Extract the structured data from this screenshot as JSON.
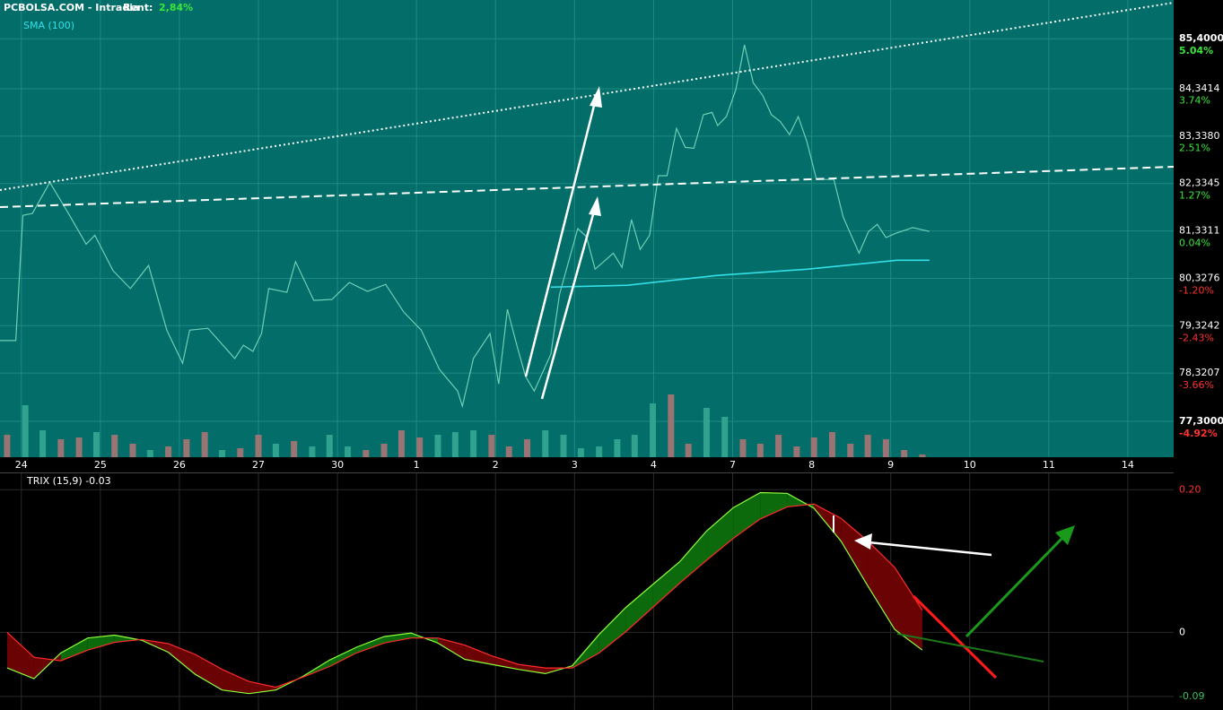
{
  "chart_data": [
    {
      "type": "line",
      "title": "PCBOLSA.COM - Intradia",
      "rent_label": "Rent:",
      "rent_value": "2,84%",
      "grid": true,
      "xlim": [
        -0.27,
        14.58
      ],
      "xticks": [
        {
          "value": 0,
          "label": "24"
        },
        {
          "value": 1,
          "label": "25"
        },
        {
          "value": 2,
          "label": "26"
        },
        {
          "value": 3,
          "label": "27"
        },
        {
          "value": 4,
          "label": "30"
        },
        {
          "value": 5,
          "label": "1"
        },
        {
          "value": 6,
          "label": "2"
        },
        {
          "value": 7,
          "label": "3"
        },
        {
          "value": 8,
          "label": "4"
        },
        {
          "value": 9,
          "label": "7"
        },
        {
          "value": 10,
          "label": "8"
        },
        {
          "value": 11,
          "label": "9"
        },
        {
          "value": 12,
          "label": "10"
        },
        {
          "value": 13,
          "label": "11"
        },
        {
          "value": 14,
          "label": "14"
        }
      ],
      "ylim": [
        76.54,
        86.22
      ],
      "yticks": [
        {
          "value": 85.4,
          "label": "85,4000"
        },
        {
          "value": 84.3414,
          "label": "84,3414"
        },
        {
          "value": 83.338,
          "label": "83,3380"
        },
        {
          "value": 82.3345,
          "label": "82,3345"
        },
        {
          "value": 81.3311,
          "label": "81,3311"
        },
        {
          "value": 80.3276,
          "label": "80,3276"
        },
        {
          "value": 79.3242,
          "label": "79,3242"
        },
        {
          "value": 78.3207,
          "label": "78,3207"
        },
        {
          "value": 77.3,
          "label": "77,3000"
        }
      ],
      "y2lim": [
        -5.85,
        6.04
      ],
      "y2ticks": [
        {
          "value": 5.04,
          "label": "5.04%"
        },
        {
          "value": 3.74,
          "label": "3.74%"
        },
        {
          "value": 2.51,
          "label": "2.51%"
        },
        {
          "value": 1.27,
          "label": "1.27%"
        },
        {
          "value": 0.04,
          "label": "0.04%"
        },
        {
          "value": -1.2,
          "label": "-1.20%"
        },
        {
          "value": -2.43,
          "label": "-2.43%"
        },
        {
          "value": -3.66,
          "label": "-3.66%"
        },
        {
          "value": -4.92,
          "label": "-4.92%"
        }
      ],
      "series": [
        {
          "color": "#6fcfb5",
          "x": [
            -0.27,
            -0.07,
            0.02,
            0.14,
            0.36,
            0.59,
            0.82,
            0.93,
            1.16,
            1.38,
            1.61,
            1.84,
            2.04,
            2.13,
            2.36,
            2.7,
            2.81,
            2.93,
            3.04,
            3.13,
            3.36,
            3.47,
            3.7,
            3.93,
            4.15,
            4.38,
            4.61,
            4.84,
            5.06,
            5.29,
            5.52,
            5.58,
            5.72,
            5.93,
            6.04,
            6.15,
            6.27,
            6.38,
            6.49,
            6.7,
            6.81,
            7.04,
            7.15,
            7.26,
            7.49,
            7.6,
            7.72,
            7.83,
            7.95,
            8.06,
            8.17,
            8.29,
            8.4,
            8.51,
            8.63,
            8.74,
            8.81,
            8.92,
            9.04,
            9.15,
            9.26,
            9.38,
            9.49,
            9.6,
            9.72,
            9.83,
            9.94,
            10.06,
            10.28,
            10.4,
            10.6,
            10.72,
            10.83,
            10.94,
            11.06,
            11.28,
            11.49
          ],
          "values": [
            79.01,
            79.01,
            81.66,
            81.7,
            82.36,
            81.72,
            81.05,
            81.24,
            80.49,
            80.11,
            80.6,
            79.23,
            78.53,
            79.23,
            79.27,
            78.63,
            78.91,
            78.78,
            79.16,
            80.11,
            80.03,
            80.68,
            79.86,
            79.88,
            80.24,
            80.05,
            80.2,
            79.61,
            79.23,
            78.4,
            77.94,
            77.62,
            78.63,
            79.16,
            78.09,
            79.67,
            78.91,
            78.25,
            77.94,
            78.72,
            79.99,
            81.38,
            81.21,
            80.52,
            80.86,
            80.56,
            81.57,
            80.94,
            81.24,
            82.5,
            82.5,
            83.5,
            83.1,
            83.08,
            83.79,
            83.84,
            83.56,
            83.75,
            84.32,
            85.27,
            84.47,
            84.2,
            83.79,
            83.65,
            83.37,
            83.75,
            83.22,
            82.42,
            82.42,
            81.62,
            80.86,
            81.32,
            81.47,
            81.19,
            81.28,
            81.4,
            81.32
          ]
        },
        {
          "name": "SMA (100)",
          "color": "#33e0e8",
          "x": [
            6.7,
            7.67,
            8.81,
            9.94,
            11.08,
            11.49
          ],
          "values": [
            80.14,
            80.18,
            80.39,
            80.52,
            80.71,
            80.71
          ]
        }
      ],
      "volume": {
        "ylim": [
          0,
          100
        ],
        "x": [
          -0.18,
          0.05,
          0.27,
          0.5,
          0.73,
          0.95,
          1.18,
          1.41,
          1.63,
          1.86,
          2.09,
          2.32,
          2.54,
          2.77,
          3.0,
          3.22,
          3.45,
          3.68,
          3.9,
          4.13,
          4.36,
          4.59,
          4.81,
          5.04,
          5.27,
          5.49,
          5.72,
          5.95,
          6.17,
          6.4,
          6.63,
          6.86,
          7.08,
          7.31,
          7.54,
          7.76,
          7.99,
          8.22,
          8.44,
          8.67,
          8.9,
          9.13,
          9.35,
          9.58,
          9.81,
          10.03,
          10.26,
          10.49,
          10.71,
          10.94,
          11.17,
          11.4
        ],
        "values": [
          25,
          58,
          30,
          20,
          22,
          28,
          25,
          15,
          8,
          12,
          20,
          28,
          8,
          10,
          25,
          15,
          18,
          12,
          25,
          12,
          8,
          15,
          30,
          22,
          25,
          28,
          30,
          25,
          12,
          20,
          30,
          25,
          10,
          12,
          20,
          25,
          60,
          70,
          15,
          55,
          45,
          20,
          15,
          25,
          12,
          22,
          28,
          15,
          25,
          20,
          8,
          3
        ],
        "colors": [
          "#9a7373",
          "#2fa38d",
          "#2fa38d",
          "#9a7373",
          "#9a7373",
          "#2fa38d",
          "#9a7373",
          "#9a7373",
          "#2fa38d",
          "#9a7373",
          "#9a7373",
          "#9a7373",
          "#2fa38d",
          "#9a7373",
          "#9a7373",
          "#2fa38d",
          "#9a7373",
          "#2fa38d",
          "#2fa38d",
          "#2fa38d",
          "#9a7373",
          "#9a7373",
          "#9a7373",
          "#9a7373",
          "#2fa38d",
          "#2fa38d",
          "#2fa38d",
          "#9a7373",
          "#9a7373",
          "#9a7373",
          "#2fa38d",
          "#2fa38d",
          "#2fa38d",
          "#2fa38d",
          "#2fa38d",
          "#2fa38d",
          "#2fa38d",
          "#9a7373",
          "#9a7373",
          "#2fa38d",
          "#2fa38d",
          "#9a7373",
          "#9a7373",
          "#9a7373",
          "#9a7373",
          "#9a7373",
          "#9a7373",
          "#9a7373",
          "#9a7373",
          "#9a7373",
          "#9a7373",
          "#9a7373"
        ]
      }
    },
    {
      "type": "line",
      "title": "TRIX (15,9) -0.03",
      "grid": true,
      "xlim": [
        -0.27,
        14.58
      ],
      "xticks": [
        0,
        1,
        2,
        3,
        4,
        5,
        6,
        7,
        8,
        9,
        10,
        11,
        12,
        13,
        14
      ],
      "ylim": [
        -0.109,
        0.223
      ],
      "yticks": [
        {
          "value": 0.2,
          "label": "0.20"
        },
        0,
        -0.09
      ],
      "ytick_colors": [
        "#ff3030",
        "#ffffff",
        "#3fbf5f"
      ],
      "fill_colors": [
        "#0c6a0c",
        "#6a0404"
      ],
      "x": [
        -0.18,
        0.16,
        0.5,
        0.84,
        1.18,
        1.52,
        1.86,
        2.2,
        2.54,
        2.88,
        3.22,
        3.56,
        3.9,
        4.24,
        4.59,
        4.93,
        5.27,
        5.61,
        5.95,
        6.29,
        6.63,
        6.97,
        7.31,
        7.65,
        7.99,
        8.33,
        8.67,
        9.01,
        9.35,
        9.69,
        10.03,
        10.37,
        10.71,
        11.05,
        11.4
      ],
      "series": [
        {
          "color": "#8cff3a",
          "values": [
            -0.05,
            -0.065,
            -0.029,
            -0.008,
            -0.004,
            -0.011,
            -0.028,
            -0.059,
            -0.081,
            -0.086,
            -0.081,
            -0.062,
            -0.039,
            -0.021,
            -0.006,
            -0.001,
            -0.015,
            -0.038,
            -0.045,
            -0.052,
            -0.058,
            -0.047,
            -0.003,
            0.035,
            0.067,
            0.099,
            0.142,
            0.175,
            0.196,
            0.195,
            0.174,
            0.128,
            0.065,
            0.004,
            -0.025
          ]
        },
        {
          "color": "#ff2a2a",
          "values": [
            0,
            -0.035,
            -0.04,
            -0.025,
            -0.014,
            -0.01,
            -0.016,
            -0.031,
            -0.052,
            -0.069,
            -0.077,
            -0.063,
            -0.048,
            -0.029,
            -0.015,
            -0.008,
            -0.008,
            -0.018,
            -0.033,
            -0.045,
            -0.05,
            -0.05,
            -0.029,
            0.001,
            0.035,
            0.069,
            0.101,
            0.132,
            0.159,
            0.176,
            0.18,
            0.16,
            0.128,
            0.091,
            0.031
          ]
        }
      ]
    }
  ]
}
